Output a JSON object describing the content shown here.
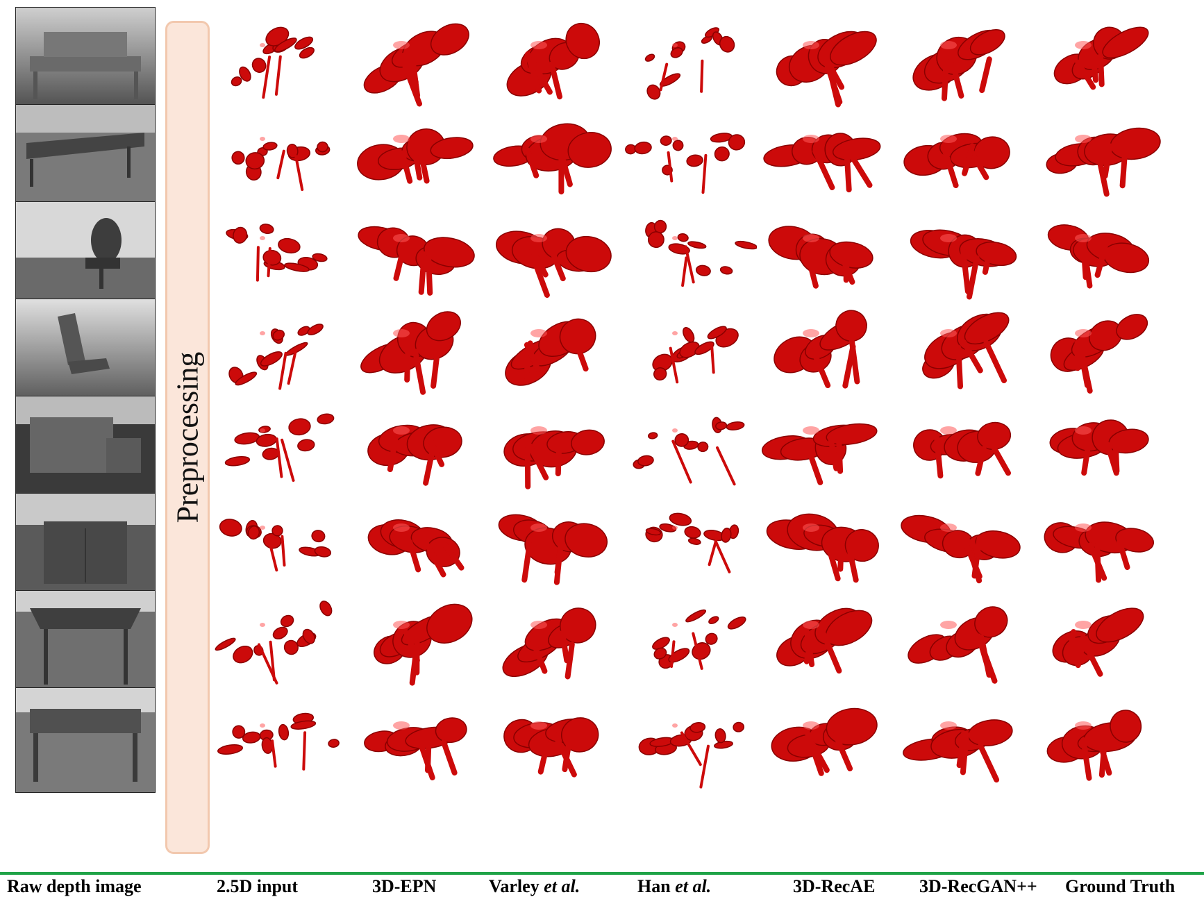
{
  "figure": {
    "preprocessing_label": "Preprocessing",
    "column_labels": [
      {
        "text": "Raw depth image",
        "italic": ""
      },
      {
        "text": "2.5D input",
        "italic": ""
      },
      {
        "text": "3D-EPN",
        "italic": ""
      },
      {
        "text": "Varley ",
        "italic": "et al."
      },
      {
        "text": "Han ",
        "italic": "et al."
      },
      {
        "text": "3D-RecAE",
        "italic": ""
      },
      {
        "text": "3D-RecGAN++",
        "italic": ""
      },
      {
        "text": "Ground Truth",
        "italic": ""
      }
    ],
    "row_count": 8,
    "colors": {
      "shape_fill": "#cc0a0a",
      "shape_dark": "#8a0000",
      "shape_light": "#ff5a5a",
      "accent_line": "#1fa347",
      "prep_fill": "#fbe6da",
      "prep_border": "#f2c8ae"
    }
  }
}
